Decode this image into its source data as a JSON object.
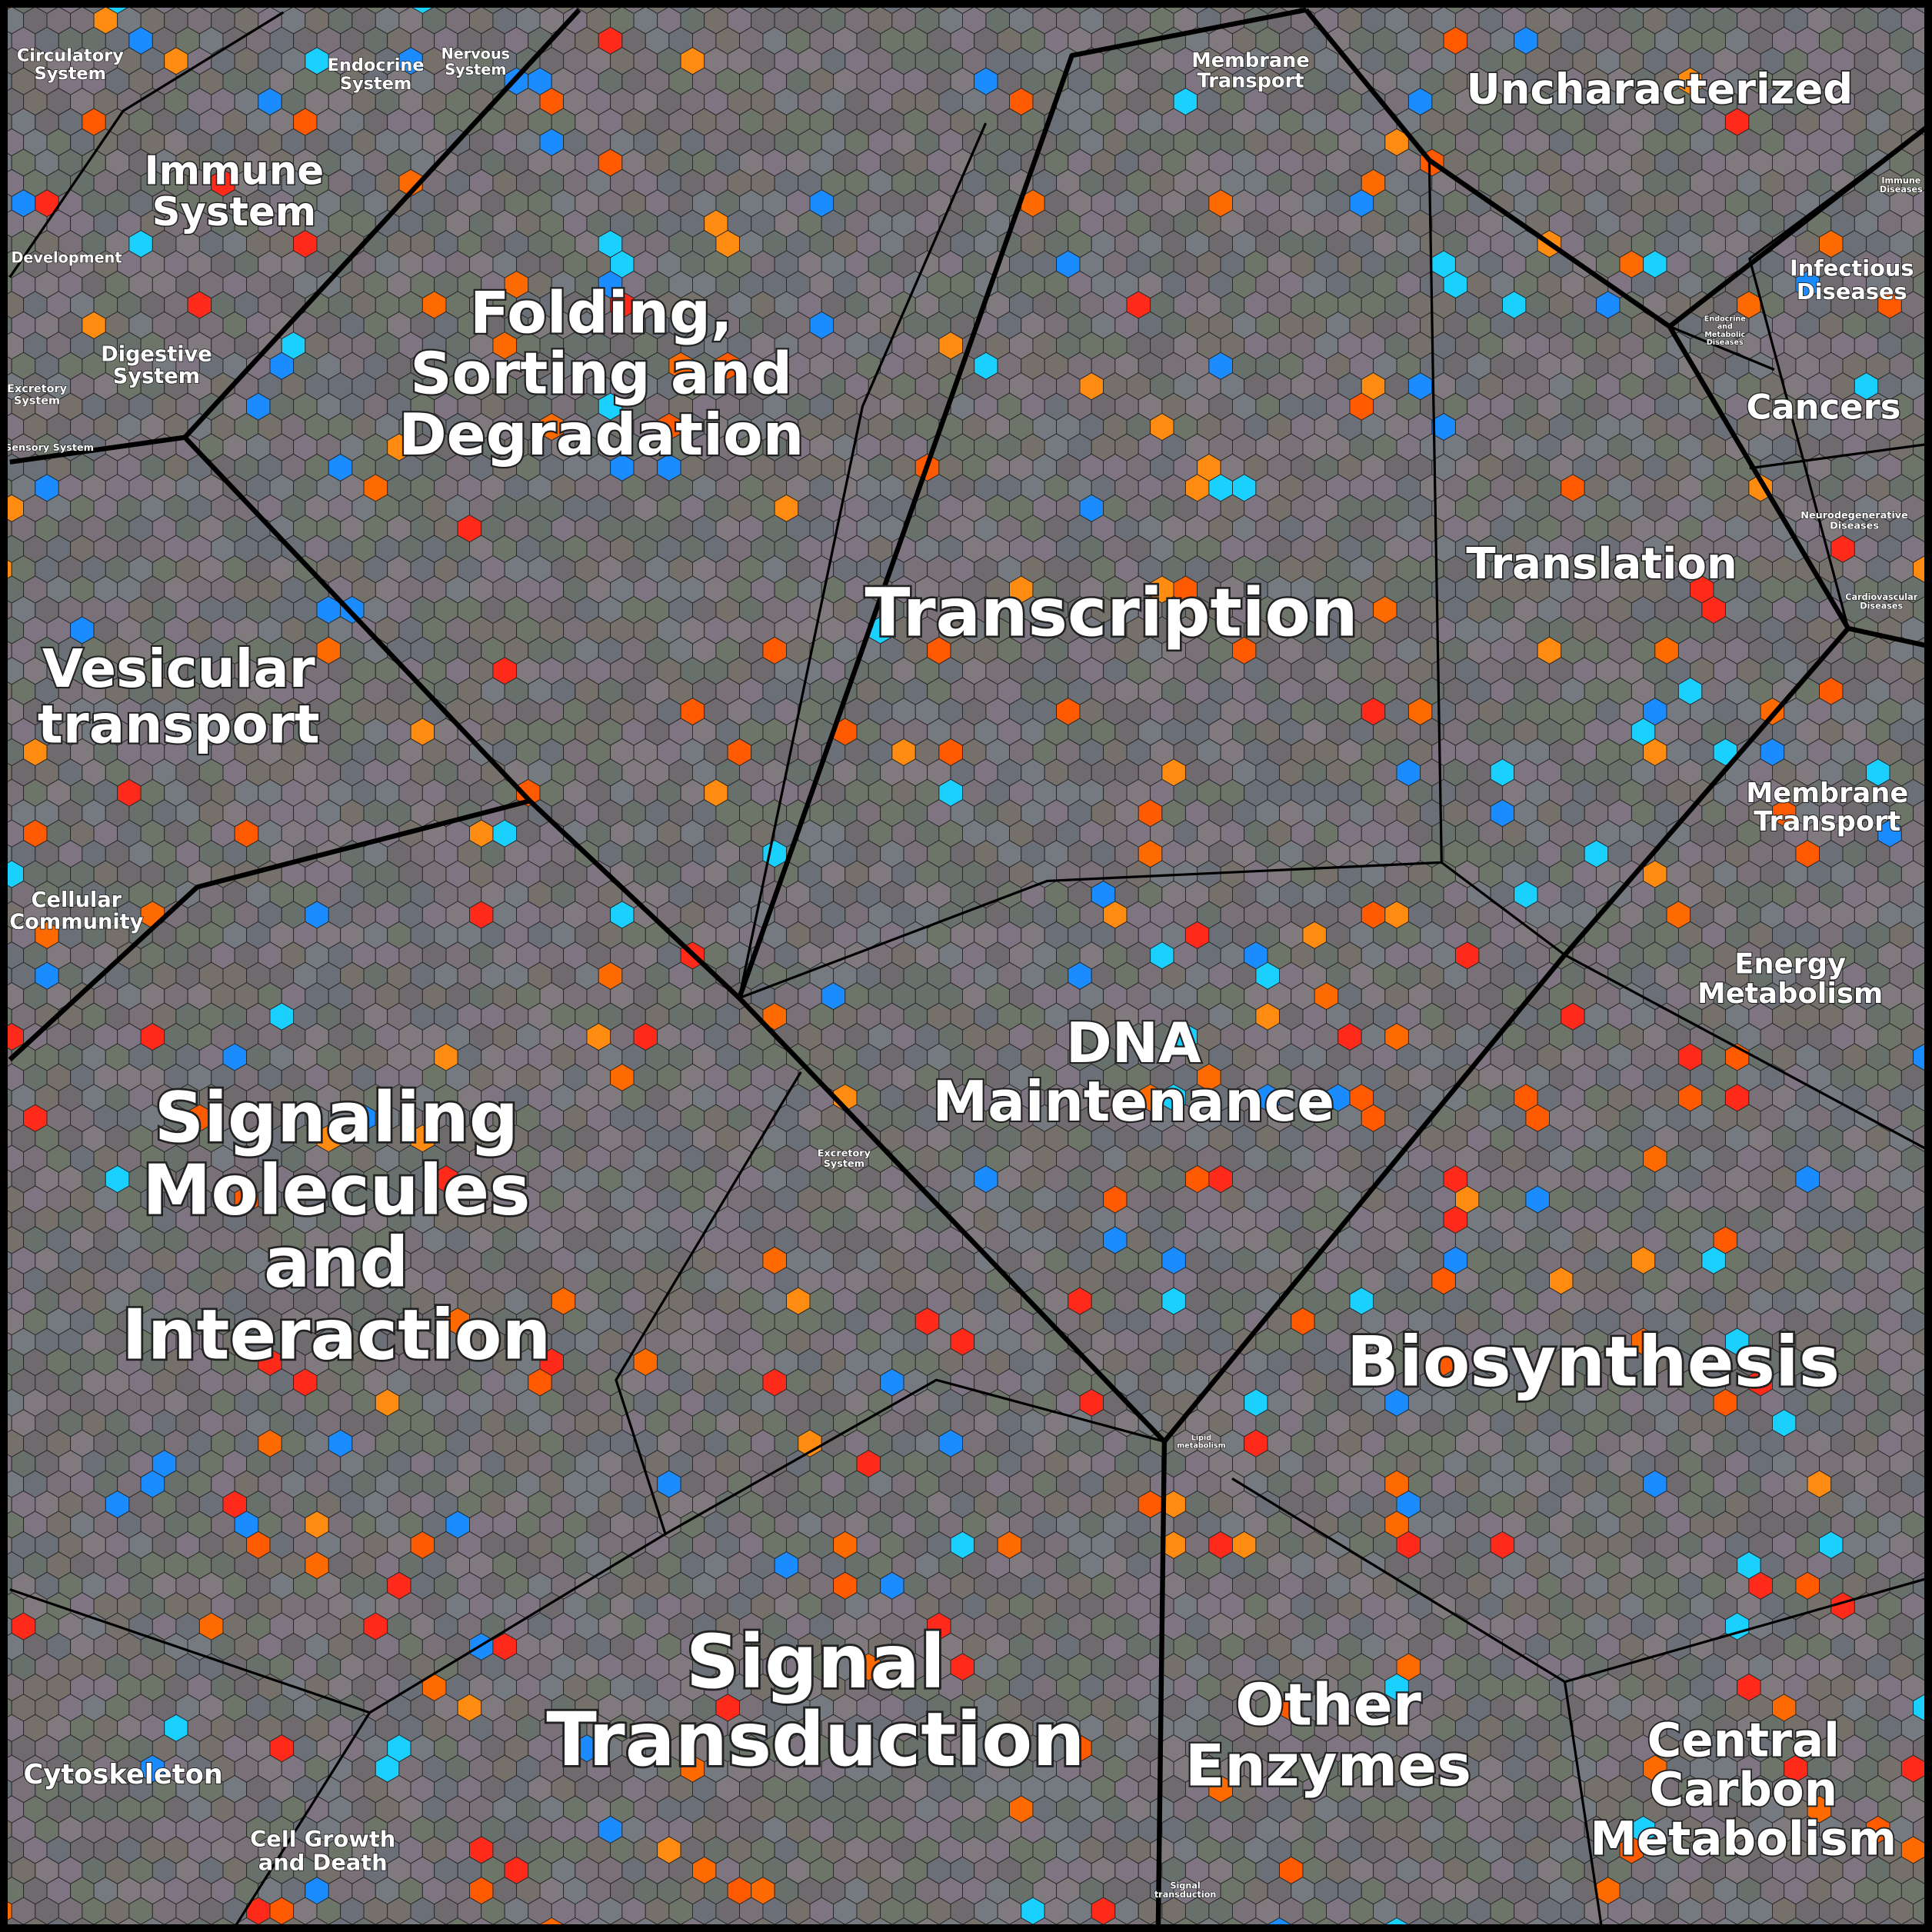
{
  "labels": [
    {
      "lines": [
        "Circulatory",
        "System"
      ]
    },
    {
      "lines": [
        "Endocrine",
        "System"
      ]
    },
    {
      "lines": [
        "Nervous",
        "System"
      ]
    },
    {
      "lines": [
        "Membrane",
        "Transport"
      ]
    },
    {
      "lines": [
        "Uncharacterized"
      ]
    },
    {
      "lines": [
        "Immune",
        "System"
      ]
    },
    {
      "lines": [
        "Development"
      ]
    },
    {
      "lines": [
        "Digestive",
        "System"
      ]
    },
    {
      "lines": [
        "Excretory",
        "System"
      ]
    },
    {
      "lines": [
        "Sensory System"
      ]
    },
    {
      "lines": [
        "Folding,",
        "Sorting and",
        "Degradation"
      ]
    },
    {
      "lines": [
        "Transcription"
      ]
    },
    {
      "lines": [
        "Translation"
      ]
    },
    {
      "lines": [
        "Infectious",
        "Diseases"
      ]
    },
    {
      "lines": [
        "Immune",
        "Diseases"
      ]
    },
    {
      "lines": [
        "Endocrine",
        "and",
        "Metabolic",
        "Diseases"
      ]
    },
    {
      "lines": [
        "Cancers"
      ]
    },
    {
      "lines": [
        "Neurodegenerative",
        "Diseases"
      ]
    },
    {
      "lines": [
        "Cardiovascular",
        "Diseases"
      ]
    },
    {
      "lines": [
        "Membrane",
        "Transport"
      ]
    },
    {
      "lines": [
        "Energy",
        "Metabolism"
      ]
    },
    {
      "lines": [
        "Vesicular",
        "transport"
      ]
    },
    {
      "lines": [
        "Cellular",
        "Community"
      ]
    },
    {
      "lines": [
        "DNA",
        "Maintenance"
      ]
    },
    {
      "lines": [
        "Excretory",
        "System"
      ]
    },
    {
      "lines": [
        "Signaling",
        "Molecules",
        "and",
        "Interaction"
      ]
    },
    {
      "lines": [
        "Biosynthesis"
      ]
    },
    {
      "lines": [
        "Lipid",
        "metabolism"
      ]
    },
    {
      "lines": [
        "Signal",
        "Transduction"
      ]
    },
    {
      "lines": [
        "Other",
        "Enzymes"
      ]
    },
    {
      "lines": [
        "Central",
        "Carbon",
        "Metabolism"
      ]
    },
    {
      "lines": [
        "Cytoskeleton"
      ]
    },
    {
      "lines": [
        "Cell Growth",
        "and Death"
      ]
    },
    {
      "lines": [
        "Signal",
        "transduction"
      ]
    }
  ]
}
